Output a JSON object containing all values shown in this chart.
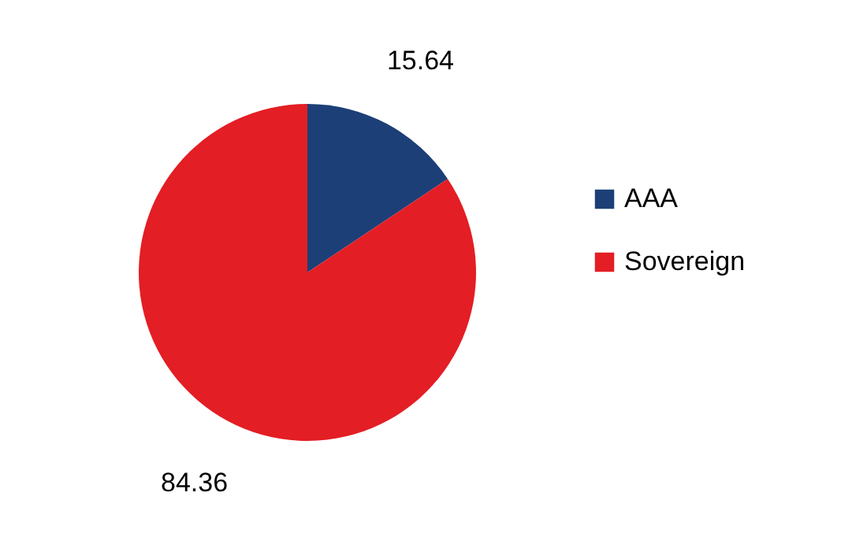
{
  "chart_data": {
    "type": "pie",
    "categories": [
      "AAA",
      "Sovereign"
    ],
    "values": [
      15.64,
      84.36
    ],
    "colors": [
      "#1c3f77",
      "#e31e24"
    ],
    "data_labels": true,
    "legend": "right"
  }
}
